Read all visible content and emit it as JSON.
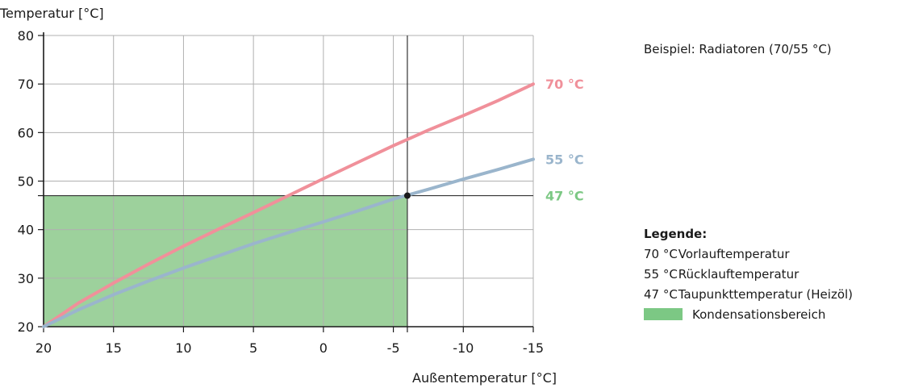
{
  "chart_data": {
    "type": "line",
    "ylabel": "Temperatur [°C]",
    "xlabel": "Außentemperatur [°C]",
    "x_ticks": [
      20,
      15,
      10,
      5,
      0,
      -5,
      -10,
      -15
    ],
    "x_tick_labels": [
      "20",
      "15",
      "10",
      "5",
      "0",
      "-5",
      "-10",
      "-15"
    ],
    "y_ticks": [
      20,
      30,
      40,
      50,
      60,
      70,
      80
    ],
    "y_tick_labels": [
      "20",
      "30",
      "40",
      "50",
      "60",
      "70",
      "80"
    ],
    "xlim": [
      20,
      -15
    ],
    "ylim": [
      20,
      80
    ],
    "grid": true,
    "series": [
      {
        "name": "Vorlauftemperatur",
        "color": "#f0909a",
        "end_label": "70 °C",
        "x": [
          20,
          17.5,
          15,
          12.5,
          10,
          7.5,
          5,
          2.5,
          0,
          -2.5,
          -5,
          -7.5,
          -10,
          -12.5,
          -15
        ],
        "y": [
          20,
          24.9,
          29.0,
          32.9,
          36.6,
          40.1,
          43.5,
          47.0,
          50.5,
          53.9,
          57.3,
          60.5,
          63.5,
          66.6,
          70
        ]
      },
      {
        "name": "Rücklauftemperatur",
        "color": "#9ab5cc",
        "end_label": "55 °C",
        "x": [
          20,
          17.5,
          15,
          12.5,
          10,
          7.5,
          5,
          2.5,
          0,
          -2.5,
          -5,
          -7.5,
          -10,
          -12.5,
          -15
        ],
        "y": [
          20,
          23.5,
          26.6,
          29.4,
          32.1,
          34.6,
          37.1,
          39.4,
          41.6,
          43.9,
          46.3,
          48.3,
          50.4,
          52.4,
          54.5
        ]
      }
    ],
    "dewpoint": {
      "value": 47,
      "label": "47 °C",
      "color": "#7cc884"
    },
    "condensation_area": {
      "x_from": 20,
      "x_to": -6,
      "y_from": 20,
      "y_to": 47,
      "color": "#9dd19c"
    },
    "marker": {
      "x": -6,
      "y": 47
    },
    "vertical_line_x": -6
  },
  "side": {
    "example": "Beispiel: Radiatoren (70/55 °C)",
    "legend_title": "Legende:",
    "legend": [
      {
        "value": "70 °C",
        "text": "Vorlauftemperatur"
      },
      {
        "value": "55 °C",
        "text": "Rücklauftemperatur"
      },
      {
        "value": "47 °C",
        "text": "Taupunkttemperatur (Heizöl)"
      },
      {
        "value": "",
        "text": "Kondensationsbereich",
        "swatch_color": "#7cc884"
      }
    ]
  }
}
